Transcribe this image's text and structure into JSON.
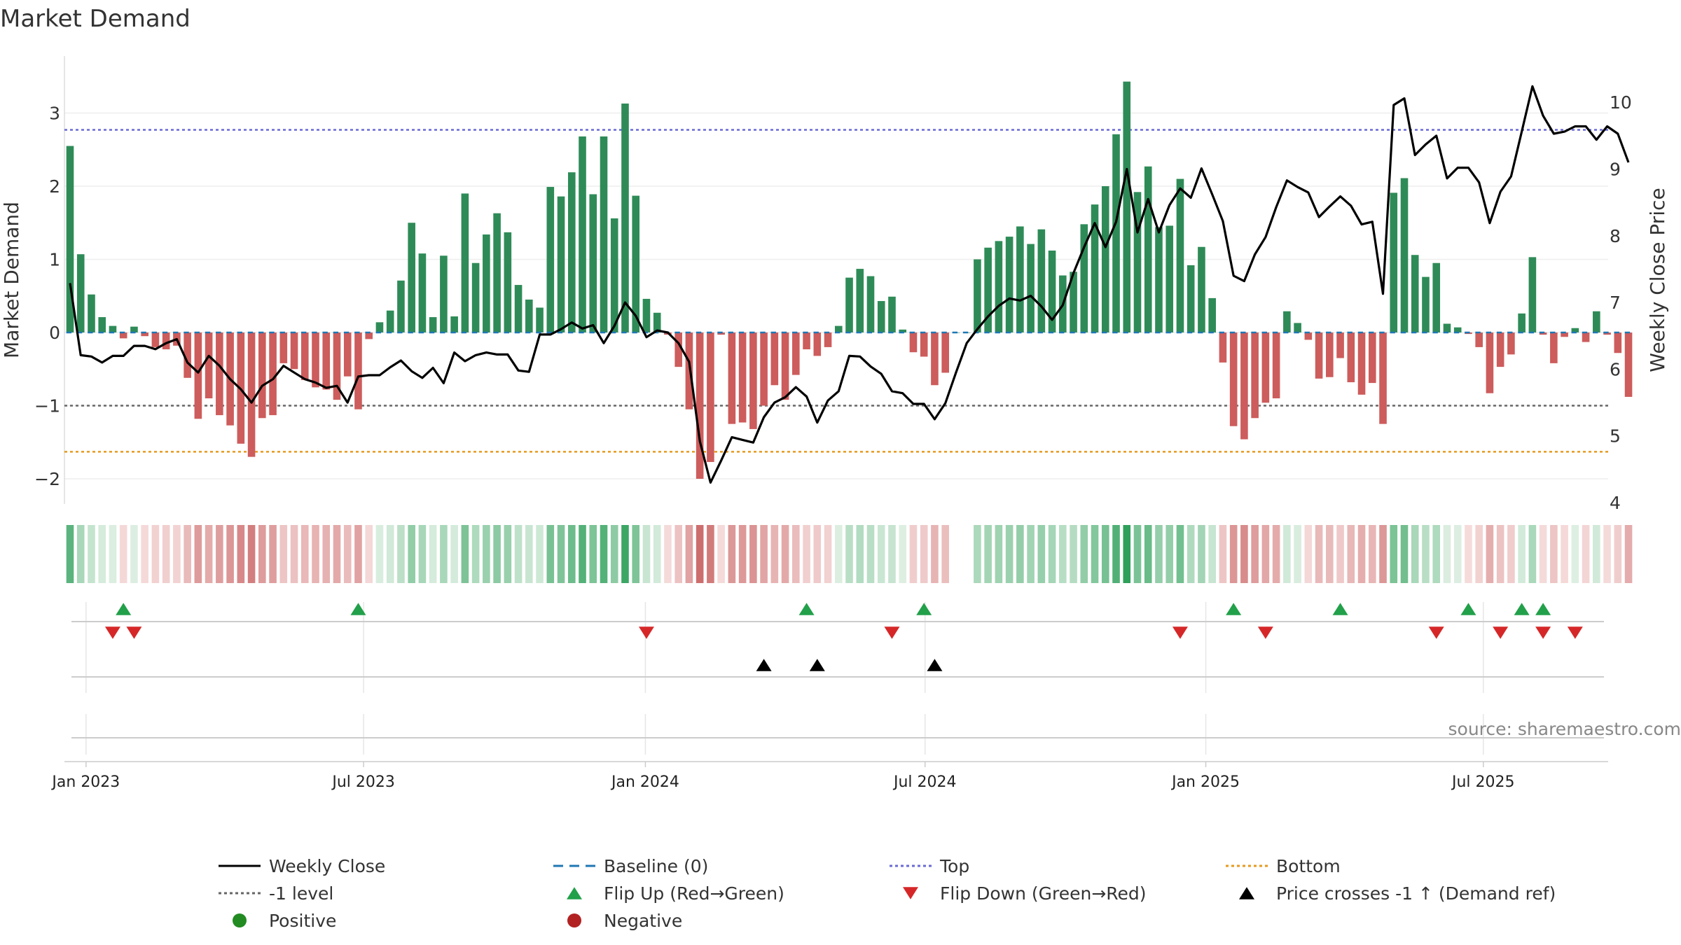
{
  "chart_data": {
    "type": "bar",
    "title": "Market Demand",
    "ylabel": "Market Demand",
    "y2label": "Weekly Close Price",
    "source": "source: sharemaestro.com",
    "ylim": [
      -2.3,
      3.35
    ],
    "y2lim": [
      4.0,
      10.33
    ],
    "yticks": [
      "3",
      "2",
      "1",
      "0",
      "−1",
      "−2"
    ],
    "yticks_values": [
      3,
      2,
      1,
      0,
      -1,
      -2
    ],
    "y2ticks": [
      "10",
      "9",
      "8",
      "7",
      "6",
      "5",
      "4"
    ],
    "y2ticks_values": [
      10,
      9,
      8,
      7,
      6,
      5,
      4
    ],
    "xticks": [
      "Jan 2023",
      "Jul 2023",
      "Jan 2024",
      "Jul 2024",
      "Jan 2025",
      "Jul 2025"
    ],
    "xticks_week": [
      1.5,
      27.5,
      53.9,
      80.1,
      106.4,
      132.4
    ],
    "levels": {
      "top": 2.77,
      "bottom": -1.63,
      "minus_one": -1.0,
      "baseline": 0
    },
    "colors": {
      "positive": "#2e8b57",
      "negative": "#cd5c5c",
      "line": "#000000",
      "top": "#6a6ad6",
      "bottom": "#e69a1f",
      "minus_one": "#666666",
      "baseline": "#1f77b4",
      "flip_up": "#22a04a",
      "flip_down": "#d62728",
      "cross": "#000000"
    },
    "demand": [
      2.55,
      1.07,
      0.52,
      0.21,
      0.09,
      -0.08,
      0.08,
      -0.05,
      -0.2,
      -0.23,
      -0.18,
      -0.62,
      -1.18,
      -0.9,
      -1.13,
      -1.27,
      -1.52,
      -1.7,
      -1.17,
      -1.13,
      -0.42,
      -0.5,
      -0.65,
      -0.75,
      -0.78,
      -0.92,
      -0.6,
      -1.05,
      -0.09,
      0.14,
      0.3,
      0.71,
      1.5,
      1.08,
      0.21,
      1.05,
      0.22,
      1.9,
      0.95,
      1.34,
      1.63,
      1.37,
      0.65,
      0.45,
      0.34,
      1.99,
      1.86,
      2.19,
      2.68,
      1.89,
      2.68,
      1.56,
      3.13,
      1.87,
      0.46,
      0.27,
      -0.03,
      -0.47,
      -1.05,
      -2.0,
      -1.77,
      -0.03,
      -1.25,
      -1.23,
      -1.32,
      -1.0,
      -0.72,
      -0.92,
      -0.58,
      -0.23,
      -0.32,
      -0.2,
      0.09,
      0.75,
      0.87,
      0.77,
      0.43,
      0.49,
      0.04,
      -0.27,
      -0.33,
      -0.72,
      -0.55,
      0.0,
      0.0,
      1.0,
      1.16,
      1.25,
      1.31,
      1.45,
      1.21,
      1.41,
      1.12,
      0.78,
      0.83,
      1.48,
      1.75,
      2.0,
      2.71,
      3.43,
      1.92,
      2.27,
      1.44,
      1.46,
      2.1,
      0.92,
      1.17,
      0.47,
      -0.41,
      -1.28,
      -1.46,
      -1.17,
      -0.96,
      -0.9,
      0.29,
      0.13,
      -0.1,
      -0.63,
      -0.61,
      -0.35,
      -0.68,
      -0.85,
      -0.69,
      -1.25,
      1.91,
      2.11,
      1.06,
      0.76,
      0.95,
      0.12,
      0.07,
      -0.02,
      -0.2,
      -0.83,
      -0.47,
      -0.3,
      0.26,
      1.03,
      -0.03,
      -0.42,
      -0.06,
      0.06,
      -0.13,
      0.29,
      -0.03,
      -0.28,
      -0.88
    ],
    "close": [
      7.29,
      6.21,
      6.19,
      6.1,
      6.2,
      6.2,
      6.35,
      6.35,
      6.3,
      6.39,
      6.45,
      6.1,
      5.95,
      6.2,
      6.05,
      5.85,
      5.7,
      5.5,
      5.75,
      5.85,
      6.05,
      5.95,
      5.85,
      5.8,
      5.72,
      5.75,
      5.5,
      5.89,
      5.91,
      5.91,
      6.03,
      6.13,
      5.97,
      5.87,
      6.02,
      5.79,
      6.25,
      6.12,
      6.21,
      6.25,
      6.22,
      6.22,
      5.98,
      5.96,
      6.52,
      6.52,
      6.6,
      6.7,
      6.61,
      6.66,
      6.39,
      6.65,
      7.0,
      6.8,
      6.48,
      6.58,
      6.55,
      6.39,
      6.11,
      4.92,
      4.3,
      4.63,
      4.98,
      4.94,
      4.9,
      5.28,
      5.5,
      5.58,
      5.73,
      5.59,
      5.2,
      5.53,
      5.67,
      6.2,
      6.19,
      6.04,
      5.93,
      5.67,
      5.64,
      5.48,
      5.48,
      5.25,
      5.49,
      5.95,
      6.39,
      6.6,
      6.79,
      6.95,
      7.06,
      7.03,
      7.1,
      6.94,
      6.74,
      6.96,
      7.44,
      7.83,
      8.19,
      7.83,
      8.21,
      9.0,
      8.05,
      8.55,
      8.05,
      8.46,
      8.71,
      8.57,
      9.01,
      8.62,
      8.22,
      7.4,
      7.32,
      7.72,
      7.98,
      8.43,
      8.83,
      8.73,
      8.65,
      8.28,
      8.44,
      8.59,
      8.45,
      8.17,
      8.21,
      7.13,
      9.96,
      10.06,
      9.21,
      9.37,
      9.5,
      8.86,
      9.02,
      9.02,
      8.8,
      8.19,
      8.66,
      8.89,
      9.56,
      10.24,
      9.8,
      9.53,
      9.56,
      9.64,
      9.64,
      9.44,
      9.64,
      9.53,
      9.1
    ],
    "flip_up_weeks": [
      5,
      27,
      69,
      80,
      109,
      119,
      131,
      136,
      138
    ],
    "flip_down_weeks": [
      4,
      6,
      54,
      77,
      104,
      112,
      128,
      134,
      138,
      141
    ],
    "cross_weeks": [
      65,
      70,
      81
    ],
    "legend": [
      {
        "label": "Weekly Close",
        "marker": "line",
        "color": "#000000"
      },
      {
        "label": "Baseline (0)",
        "marker": "dash",
        "color": "#1f77b4"
      },
      {
        "label": "Top",
        "marker": "dot",
        "color": "#6a6ad6"
      },
      {
        "label": "Bottom",
        "marker": "dot",
        "color": "#e69a1f"
      },
      {
        "label": "-1 level",
        "marker": "dot",
        "color": "#666666"
      },
      {
        "label": "Flip Up (Red→Green)",
        "marker": "tri-up",
        "color": "#22a04a"
      },
      {
        "label": "Flip Down (Green→Red)",
        "marker": "tri-down",
        "color": "#d62728"
      },
      {
        "label": "Price crosses -1 ↑ (Demand ref)",
        "marker": "tri-up",
        "color": "#000000"
      },
      {
        "label": "Positive",
        "marker": "circle",
        "color": "#228b22"
      },
      {
        "label": "Negative",
        "marker": "circle",
        "color": "#b22222"
      }
    ]
  }
}
